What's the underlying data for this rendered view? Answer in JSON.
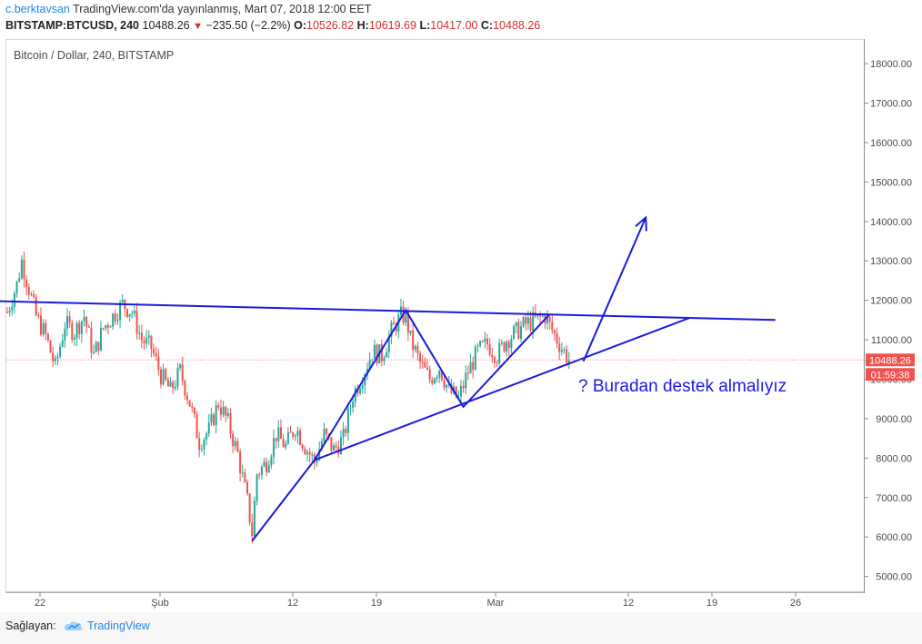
{
  "header": {
    "author": "c.berktavsan",
    "published": "TradingView.com'da yayınlanmış, Mart 07, 2018 12:00 EET",
    "symbol": "BITSTAMP:BTCUSD, 240",
    "last": "10488.26",
    "change": "−235.50 (−2.2%)",
    "open_label": "O:",
    "open": "10526.82",
    "high_label": "H:",
    "high": "10619.69",
    "low_label": "L:",
    "low": "10417.00",
    "close_label": "C:",
    "close": "10488.26"
  },
  "chart_title": "Bitcoin / Dollar, 240, BITSTAMP",
  "annotation_text": "? Buradan destek almalıyız",
  "price_tag": "10488.26",
  "countdown_tag": "01:59:38",
  "footer": {
    "label": "Sağlayan:",
    "brand": "TradingView",
    "brand_icon": "tradingview-cloud-icon"
  },
  "colors": {
    "up": "#26a69a",
    "down": "#ef5350",
    "drawing": "#1a1adf",
    "tag": "#ef5350",
    "author": "#1e88e5"
  },
  "chart_data": {
    "type": "candlestick",
    "symbol": "BTCUSD",
    "interval": "240",
    "xlabel": "",
    "ylabel": "",
    "ylim": [
      4600,
      18600
    ],
    "y_ticks": [
      "18000.00",
      "17000.00",
      "16000.00",
      "15000.00",
      "14000.00",
      "13000.00",
      "12000.00",
      "11000.00",
      "10000.00",
      "9000.00",
      "8000.00",
      "7000.00",
      "6000.00",
      "5000.00"
    ],
    "x_ticks": [
      "22",
      "Şub",
      "12",
      "19",
      "Mar",
      "12",
      "19",
      "26"
    ],
    "last_price": 10488.26,
    "price_path": [
      [
        0,
        11700
      ],
      [
        2,
        12400
      ],
      [
        3,
        13000
      ],
      [
        6,
        11600
      ],
      [
        8,
        11100
      ],
      [
        10,
        10300
      ],
      [
        12,
        11400
      ],
      [
        14,
        11200
      ],
      [
        16,
        11600
      ],
      [
        18,
        10600
      ],
      [
        20,
        11300
      ],
      [
        22,
        11600
      ],
      [
        24,
        11900
      ],
      [
        26,
        11700
      ],
      [
        28,
        11000
      ],
      [
        30,
        10800
      ],
      [
        32,
        10100
      ],
      [
        34,
        9700
      ],
      [
        36,
        10200
      ],
      [
        38,
        9400
      ],
      [
        40,
        8400
      ],
      [
        42,
        8700
      ],
      [
        44,
        9400
      ],
      [
        46,
        8900
      ],
      [
        48,
        8100
      ],
      [
        50,
        6900
      ],
      [
        51,
        6100
      ],
      [
        52,
        7600
      ],
      [
        54,
        7900
      ],
      [
        56,
        8600
      ],
      [
        58,
        8300
      ],
      [
        60,
        8800
      ],
      [
        62,
        8300
      ],
      [
        64,
        7900
      ],
      [
        66,
        8600
      ],
      [
        68,
        8200
      ],
      [
        70,
        8500
      ],
      [
        72,
        9600
      ],
      [
        74,
        10100
      ],
      [
        76,
        10700
      ],
      [
        78,
        10600
      ],
      [
        80,
        11200
      ],
      [
        82,
        11600
      ],
      [
        83,
        11600
      ],
      [
        84,
        11000
      ],
      [
        86,
        10400
      ],
      [
        88,
        10000
      ],
      [
        90,
        10300
      ],
      [
        92,
        9700
      ],
      [
        94,
        9500
      ],
      [
        96,
        10200
      ],
      [
        98,
        10700
      ],
      [
        100,
        10900
      ],
      [
        102,
        10600
      ],
      [
        104,
        11000
      ],
      [
        106,
        11200
      ],
      [
        108,
        11400
      ],
      [
        110,
        11500
      ],
      [
        112,
        11600
      ],
      [
        113,
        11350
      ],
      [
        115,
        10900
      ],
      [
        117,
        10488
      ]
    ],
    "drawings": [
      {
        "type": "trendline",
        "points": [
          [
            -10,
            12000
          ],
          [
            160,
            11500
          ]
        ]
      },
      {
        "type": "trendline",
        "points": [
          [
            51,
            5900
          ],
          [
            64,
            7950
          ],
          [
            142,
            11550
          ]
        ]
      },
      {
        "type": "polyline",
        "points": [
          [
            64,
            7950
          ],
          [
            83,
            11750
          ],
          [
            95,
            9300
          ],
          [
            113,
            11650
          ]
        ]
      },
      {
        "type": "arrow",
        "points": [
          [
            120,
            10450
          ],
          [
            133,
            14100
          ]
        ]
      }
    ]
  }
}
